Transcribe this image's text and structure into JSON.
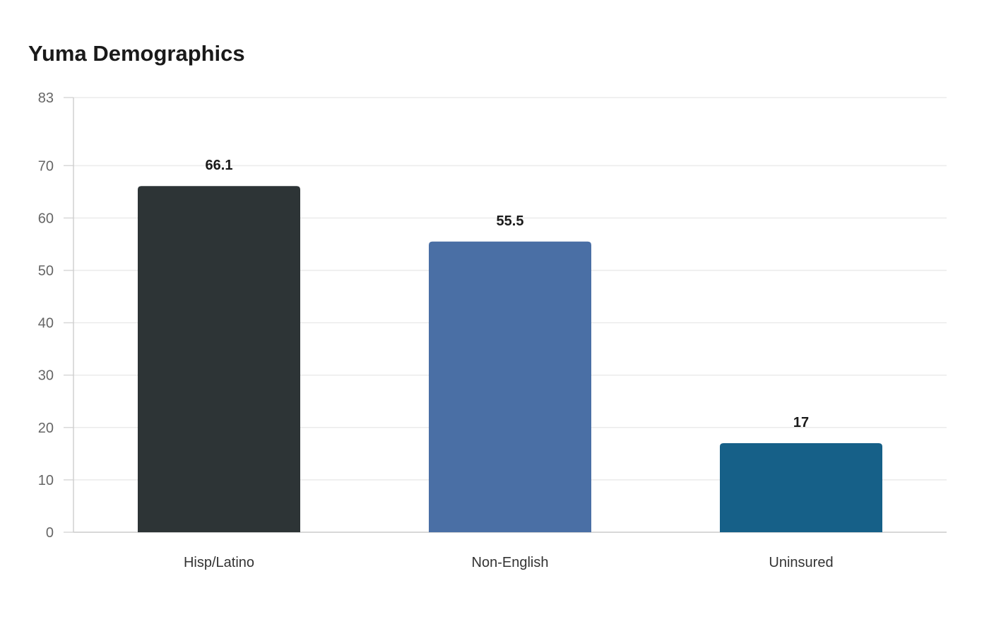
{
  "chart_data": {
    "type": "bar",
    "title": "Yuma Demographics",
    "xlabel": "",
    "ylabel": "",
    "categories": [
      "Hisp/Latino",
      "Non-English",
      "Uninsured"
    ],
    "values": [
      66.1,
      55.5,
      17
    ],
    "value_labels": [
      "66.1",
      "55.5",
      "17"
    ],
    "colors": [
      "#2d3436",
      "#4a6fa5",
      "#166088"
    ],
    "ylim": [
      0,
      83
    ],
    "yticks": [
      0,
      10,
      20,
      30,
      40,
      50,
      60,
      70,
      83
    ],
    "grid": true,
    "legend": "none"
  }
}
